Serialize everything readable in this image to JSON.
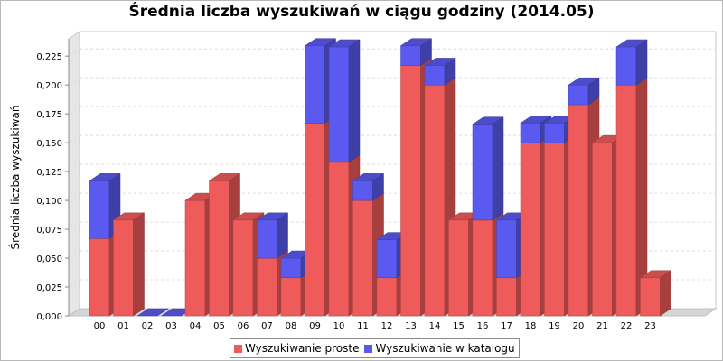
{
  "chart_data": {
    "type": "bar",
    "stacked": true,
    "three_d": true,
    "title": "Średnia liczba wyszukiwań w ciągu godziny (2014.05)",
    "xlabel": "",
    "ylabel": "Średnia liczba wyszukiwań",
    "categories": [
      "00",
      "01",
      "02",
      "03",
      "04",
      "05",
      "06",
      "07",
      "08",
      "09",
      "10",
      "11",
      "12",
      "13",
      "14",
      "15",
      "16",
      "17",
      "18",
      "19",
      "20",
      "21",
      "22",
      "23"
    ],
    "ylim": [
      0,
      0.24
    ],
    "yticks": [
      "0,000",
      "0,025",
      "0,050",
      "0,075",
      "0,100",
      "0,125",
      "0,150",
      "0,175",
      "0,200",
      "0,225"
    ],
    "grid": true,
    "legend_position": "bottom",
    "series": [
      {
        "name": "Wyszukiwanie proste",
        "color": "#ef5a5a",
        "values": [
          0.067,
          0.083,
          0.0,
          0.0,
          0.1,
          0.117,
          0.083,
          0.05,
          0.033,
          0.167,
          0.133,
          0.1,
          0.033,
          0.217,
          0.2,
          0.083,
          0.083,
          0.033,
          0.15,
          0.15,
          0.183,
          0.15,
          0.2,
          0.033
        ]
      },
      {
        "name": "Wyszukiwanie w katalogu",
        "color": "#5a5af0",
        "values": [
          0.05,
          0.0,
          0.0,
          0.0,
          0.0,
          0.0,
          0.0,
          0.033,
          0.017,
          0.067,
          0.1,
          0.017,
          0.033,
          0.017,
          0.017,
          0.0,
          0.083,
          0.05,
          0.017,
          0.017,
          0.017,
          0.0,
          0.033,
          0.0
        ]
      }
    ]
  }
}
